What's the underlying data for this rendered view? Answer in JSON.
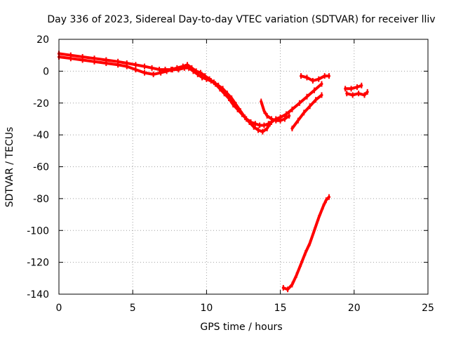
{
  "chart_data": {
    "type": "scatter",
    "title": "Day 336 of 2023, Sidereal Day-to-day VTEC variation (SDTVAR) for receiver lliv",
    "xlabel": "GPS time / hours",
    "ylabel": "SDTVAR / TECUs",
    "xlim": [
      0,
      25
    ],
    "ylim": [
      -140,
      20
    ],
    "xticks": [
      0,
      5,
      10,
      15,
      20,
      25
    ],
    "yticks": [
      20,
      0,
      -20,
      -40,
      -60,
      -80,
      -100,
      -120,
      -140
    ],
    "grid": true,
    "legend": "none",
    "series_color": "#ff0000",
    "series": [
      {
        "segments": [
          {
            "x": [
              0.0,
              0.8,
              1.6,
              2.4,
              3.2,
              4.0,
              4.6,
              5.2,
              5.8,
              6.3,
              6.8,
              7.2,
              7.6,
              8.0,
              8.4,
              8.7,
              9.0,
              9.3,
              9.6,
              9.9,
              10.2,
              10.5,
              10.8,
              11.1,
              11.4,
              11.7,
              12.0,
              12.3,
              12.6,
              12.9,
              13.2,
              13.5,
              13.8,
              14.1,
              14.3
            ],
            "y": [
              11,
              10,
              9,
              8,
              7,
              6,
              5,
              4,
              3,
              2,
              1,
              1,
              1,
              2,
              3,
              4,
              2,
              0,
              -1,
              -3,
              -5,
              -7,
              -9,
              -11,
              -14,
              -17,
              -21,
              -25,
              -29,
              -32,
              -35,
              -37,
              -38,
              -36,
              -33
            ]
          },
          {
            "x": [
              0.0,
              0.8,
              1.6,
              2.4,
              3.2,
              4.0,
              4.6,
              5.2,
              5.8,
              6.4,
              6.9,
              7.3,
              7.7,
              8.1,
              8.5,
              8.8,
              9.1,
              9.4,
              9.7,
              10.0,
              10.3,
              10.6,
              10.9,
              11.2,
              11.5,
              11.8,
              12.1,
              12.4,
              12.7,
              13.0,
              13.3,
              13.6,
              13.9,
              14.2,
              14.4,
              14.7,
              15.0,
              15.4,
              15.8,
              16.3,
              16.8,
              17.3,
              17.8
            ],
            "y": [
              9,
              8,
              7,
              6,
              5,
              4,
              3,
              1,
              -1,
              -2,
              -1,
              0,
              1,
              1,
              2,
              2,
              0,
              -2,
              -4,
              -5,
              -6,
              -8,
              -11,
              -14,
              -17,
              -21,
              -24,
              -27,
              -30,
              -32,
              -33,
              -34,
              -34,
              -33,
              -32,
              -30,
              -29,
              -27,
              -24,
              -20,
              -16,
              -12,
              -8
            ]
          },
          {
            "x": [
              13.7,
              13.9,
              14.1,
              14.4,
              14.7,
              15.0,
              15.3,
              15.6
            ],
            "y": [
              -19,
              -25,
              -28,
              -30,
              -31,
              -31,
              -30,
              -28
            ]
          },
          {
            "x": [
              15.8,
              16.2,
              16.6,
              17.0,
              17.4,
              17.8
            ],
            "y": [
              -36,
              -31,
              -26,
              -22,
              -18,
              -15
            ]
          },
          {
            "x": [
              16.4,
              16.8,
              17.2,
              17.6,
              18.0,
              18.3
            ],
            "y": [
              -3,
              -4,
              -6,
              -5,
              -3,
              -3
            ]
          },
          {
            "x": [
              15.2,
              15.5,
              15.8,
              16.1,
              16.4,
              16.7,
              17.0,
              17.3,
              17.6,
              17.9,
              18.1,
              18.3
            ],
            "y": [
              -136,
              -137,
              -134,
              -128,
              -121,
              -114,
              -108,
              -100,
              -92,
              -85,
              -81,
              -79
            ]
          },
          {
            "x": [
              19.4,
              19.8,
              20.2,
              20.5
            ],
            "y": [
              -11,
              -11,
              -10,
              -9
            ]
          },
          {
            "x": [
              19.5,
              19.9,
              20.3,
              20.7,
              20.9
            ],
            "y": [
              -14,
              -15,
              -14,
              -15,
              -13
            ]
          }
        ]
      }
    ]
  }
}
